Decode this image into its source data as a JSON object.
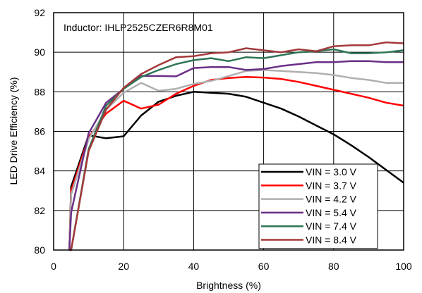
{
  "chart_data": {
    "type": "line",
    "title": "",
    "annotation": "Inductor: IHLP2525CZER6R8M01",
    "xlabel": "Brightness (%)",
    "ylabel": "LED Drive Efficiency (%)",
    "xlim": [
      0,
      100
    ],
    "ylim": [
      80,
      92
    ],
    "xticks": [
      0,
      20,
      40,
      60,
      80,
      100
    ],
    "yticks": [
      80,
      82,
      84,
      86,
      88,
      90,
      92
    ],
    "xtick_labels": [
      "0",
      "20",
      "40",
      "60",
      "80",
      "100"
    ],
    "ytick_labels": [
      "80",
      "82",
      "84",
      "86",
      "88",
      "90",
      "92"
    ],
    "grid": true,
    "legend_position": "bottom-right",
    "series": [
      {
        "name": "VIN = 3.0 V",
        "color": "#000000",
        "x": [
          4.5,
          5,
          10,
          15,
          20,
          25,
          30,
          35,
          40,
          45,
          50,
          55,
          60,
          65,
          70,
          75,
          80,
          85,
          90,
          95,
          100
        ],
        "y": [
          80,
          83.2,
          85.8,
          85.65,
          85.75,
          86.8,
          87.5,
          87.8,
          88.0,
          87.95,
          87.9,
          87.75,
          87.45,
          87.15,
          86.75,
          86.3,
          85.85,
          85.3,
          84.7,
          84.05,
          83.4
        ]
      },
      {
        "name": "VIN = 3.7 V",
        "color": "#ff0000",
        "x": [
          4.5,
          5,
          10,
          15,
          20,
          25,
          30,
          35,
          40,
          45,
          50,
          55,
          60,
          65,
          70,
          75,
          80,
          85,
          90,
          95,
          100
        ],
        "y": [
          80,
          83.0,
          85.7,
          86.9,
          87.55,
          87.15,
          87.35,
          87.9,
          88.3,
          88.6,
          88.7,
          88.75,
          88.72,
          88.65,
          88.5,
          88.3,
          88.1,
          87.9,
          87.7,
          87.45,
          87.3
        ]
      },
      {
        "name": "VIN = 4.2 V",
        "color": "#b0b0b0",
        "x": [
          4.5,
          5,
          10,
          15,
          20,
          25,
          30,
          35,
          40,
          45,
          50,
          55,
          60,
          65,
          70,
          75,
          80,
          85,
          90,
          95,
          100
        ],
        "y": [
          80,
          82.8,
          85.6,
          87.1,
          87.95,
          88.45,
          88.05,
          88.15,
          88.4,
          88.55,
          88.8,
          89.05,
          89.1,
          89.05,
          89.0,
          88.95,
          88.85,
          88.7,
          88.6,
          88.45,
          88.45
        ]
      },
      {
        "name": "VIN = 5.4 V",
        "color": "#6a2f86",
        "x": [
          4.5,
          5,
          10,
          15,
          20,
          25,
          30,
          35,
          40,
          45,
          50,
          55,
          60,
          65,
          70,
          75,
          80,
          85,
          90,
          95,
          100
        ],
        "y": [
          80,
          81.9,
          85.9,
          87.45,
          88.15,
          88.8,
          88.8,
          88.78,
          89.2,
          89.25,
          89.25,
          89.1,
          89.15,
          89.3,
          89.4,
          89.5,
          89.5,
          89.55,
          89.55,
          89.5,
          89.5
        ]
      },
      {
        "name": "VIN = 7.4 V",
        "color": "#2e7555",
        "x": [
          4.5,
          5,
          10,
          15,
          20,
          25,
          30,
          35,
          40,
          45,
          50,
          55,
          60,
          65,
          70,
          75,
          80,
          85,
          90,
          95,
          100
        ],
        "y": [
          80,
          80,
          85.1,
          87.3,
          88.15,
          88.75,
          89.1,
          89.4,
          89.6,
          89.7,
          89.55,
          89.75,
          89.7,
          89.85,
          90.0,
          90.05,
          90.15,
          89.95,
          89.95,
          90.0,
          90.1
        ]
      },
      {
        "name": "VIN = 8.4 V",
        "color": "#a33a3a",
        "x": [
          4.5,
          5,
          10,
          15,
          20,
          25,
          30,
          35,
          40,
          45,
          50,
          55,
          60,
          65,
          70,
          75,
          80,
          85,
          90,
          95,
          100
        ],
        "y": [
          80,
          80,
          85.0,
          87.1,
          88.2,
          88.9,
          89.35,
          89.75,
          89.8,
          89.95,
          90.0,
          90.2,
          90.1,
          90.0,
          90.15,
          90.05,
          90.3,
          90.35,
          90.35,
          90.5,
          90.45
        ]
      }
    ]
  }
}
